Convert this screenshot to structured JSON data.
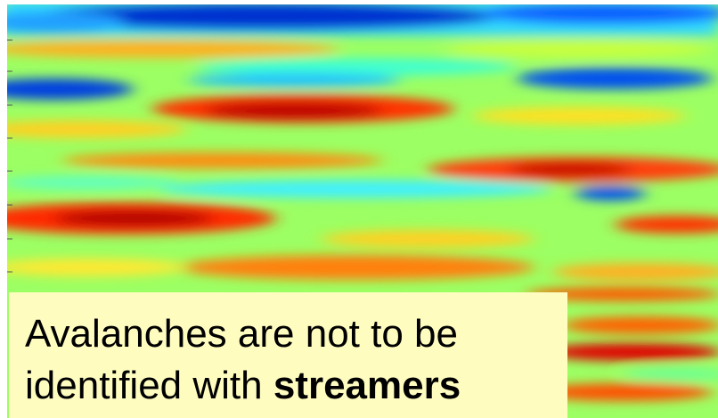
{
  "caption": {
    "line1": "Avalanches are not to be",
    "line2": "identified with ",
    "emphasis": "streamers"
  }
}
